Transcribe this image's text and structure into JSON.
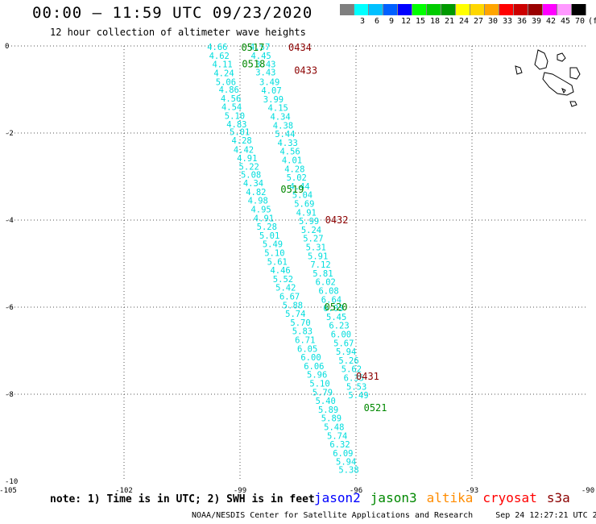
{
  "header": {
    "title": "00:00 – 11:59 UTC 09/23/2020",
    "subtitle": "12 hour collection of altimeter wave heights"
  },
  "legend": {
    "unit": "(ft)",
    "bins": [
      {
        "label": "",
        "color": "#7f7f7f"
      },
      {
        "label": "3",
        "color": "#00ffff"
      },
      {
        "label": "6",
        "color": "#00c0ff"
      },
      {
        "label": "9",
        "color": "#0060ff"
      },
      {
        "label": "12",
        "color": "#0000ff"
      },
      {
        "label": "15",
        "color": "#00ff00"
      },
      {
        "label": "18",
        "color": "#00cc00"
      },
      {
        "label": "21",
        "color": "#009900"
      },
      {
        "label": "24",
        "color": "#ffff00"
      },
      {
        "label": "27",
        "color": "#ffd700"
      },
      {
        "label": "30",
        "color": "#ffa500"
      },
      {
        "label": "33",
        "color": "#ff0000"
      },
      {
        "label": "36",
        "color": "#cc0000"
      },
      {
        "label": "39",
        "color": "#990000"
      },
      {
        "label": "42",
        "color": "#ff00ff"
      },
      {
        "label": "45",
        "color": "#ff99ff"
      },
      {
        "label": "70",
        "color": "#000000"
      }
    ]
  },
  "axes": {
    "lon_ticks": [
      "-105",
      "-102",
      "-99",
      "-96",
      "-93",
      "-90"
    ],
    "lat_ticks": [
      "0",
      "-2",
      "-4",
      "-6",
      "-8",
      "-10"
    ]
  },
  "tracks": {
    "color_cyan": "#00dddd",
    "color_green": "#008800",
    "color_red": "#8b0000",
    "track_a": [
      {
        "lon": -99.85,
        "lat": -0.02,
        "v": "4.66"
      },
      {
        "lon": -99.8,
        "lat": -0.22,
        "v": "4.62"
      },
      {
        "lon": -99.72,
        "lat": -0.42,
        "v": "4.11"
      },
      {
        "lon": -99.68,
        "lat": -0.62,
        "v": "4.24"
      },
      {
        "lon": -99.63,
        "lat": -0.82,
        "v": "5.06"
      },
      {
        "lon": -99.55,
        "lat": -1.0,
        "v": "4.86"
      },
      {
        "lon": -99.5,
        "lat": -1.2,
        "v": "4.56"
      },
      {
        "lon": -99.48,
        "lat": -1.4,
        "v": "4.54"
      },
      {
        "lon": -99.4,
        "lat": -1.6,
        "v": "5.10"
      },
      {
        "lon": -99.35,
        "lat": -1.8,
        "v": "4.83"
      },
      {
        "lon": -99.27,
        "lat": -1.97,
        "v": "5.01"
      },
      {
        "lon": -99.22,
        "lat": -2.17,
        "v": "4.28"
      },
      {
        "lon": -99.17,
        "lat": -2.38,
        "v": "4.42"
      },
      {
        "lon": -99.08,
        "lat": -2.57,
        "v": "4.91"
      },
      {
        "lon": -99.03,
        "lat": -2.77,
        "v": "5.22"
      },
      {
        "lon": -98.98,
        "lat": -2.95,
        "v": "5.08"
      },
      {
        "lon": -98.92,
        "lat": -3.15,
        "v": "4.34"
      },
      {
        "lon": -98.85,
        "lat": -3.35,
        "v": "4.82"
      },
      {
        "lon": -98.8,
        "lat": -3.55,
        "v": "4.98"
      },
      {
        "lon": -98.72,
        "lat": -3.75,
        "v": "4.95"
      },
      {
        "lon": -98.65,
        "lat": -3.95,
        "v": "4.91"
      },
      {
        "lon": -98.57,
        "lat": -4.15,
        "v": "5.28"
      },
      {
        "lon": -98.5,
        "lat": -4.35,
        "v": "5.01"
      },
      {
        "lon": -98.42,
        "lat": -4.55,
        "v": "5.49"
      },
      {
        "lon": -98.37,
        "lat": -4.75,
        "v": "5.10"
      },
      {
        "lon": -98.3,
        "lat": -4.95,
        "v": "5.61"
      },
      {
        "lon": -98.22,
        "lat": -5.15,
        "v": "4.46"
      },
      {
        "lon": -98.15,
        "lat": -5.35,
        "v": "5.52"
      },
      {
        "lon": -98.08,
        "lat": -5.55,
        "v": "5.42"
      },
      {
        "lon": -97.98,
        "lat": -5.75,
        "v": "6.67"
      },
      {
        "lon": -97.9,
        "lat": -5.95,
        "v": "5.88"
      },
      {
        "lon": -97.83,
        "lat": -6.15,
        "v": "5.74"
      },
      {
        "lon": -97.7,
        "lat": -6.35,
        "v": "5.70"
      },
      {
        "lon": -97.65,
        "lat": -6.55,
        "v": "5.83"
      },
      {
        "lon": -97.58,
        "lat": -6.75,
        "v": "6.71"
      },
      {
        "lon": -97.52,
        "lat": -6.95,
        "v": "6.05"
      },
      {
        "lon": -97.43,
        "lat": -7.15,
        "v": "6.00"
      },
      {
        "lon": -97.35,
        "lat": -7.35,
        "v": "6.06"
      },
      {
        "lon": -97.27,
        "lat": -7.55,
        "v": "5.96"
      },
      {
        "lon": -97.2,
        "lat": -7.75,
        "v": "5.10"
      },
      {
        "lon": -97.13,
        "lat": -7.95,
        "v": "5.79"
      },
      {
        "lon": -97.05,
        "lat": -8.15,
        "v": "5.40"
      },
      {
        "lon": -96.98,
        "lat": -8.35,
        "v": "5.89"
      },
      {
        "lon": -96.9,
        "lat": -8.55,
        "v": "5.89"
      },
      {
        "lon": -96.83,
        "lat": -8.75,
        "v": "5.48"
      },
      {
        "lon": -96.75,
        "lat": -8.95,
        "v": "5.74"
      },
      {
        "lon": -96.68,
        "lat": -9.15,
        "v": "6.32"
      },
      {
        "lon": -96.6,
        "lat": -9.35,
        "v": "6.09"
      },
      {
        "lon": -96.52,
        "lat": -9.55,
        "v": "5.94"
      },
      {
        "lon": -96.45,
        "lat": -9.73,
        "v": "5.38"
      }
    ],
    "track_b": [
      {
        "lon": -98.75,
        "lat": -0.02,
        "v": "4.57"
      },
      {
        "lon": -98.72,
        "lat": -0.22,
        "v": "4.45"
      },
      {
        "lon": -98.6,
        "lat": -0.42,
        "v": "3.43"
      },
      {
        "lon": -98.6,
        "lat": -0.6,
        "v": "3.43"
      },
      {
        "lon": -98.5,
        "lat": -0.82,
        "v": "3.49"
      },
      {
        "lon": -98.45,
        "lat": -1.02,
        "v": "4.07"
      },
      {
        "lon": -98.4,
        "lat": -1.22,
        "v": "3.99"
      },
      {
        "lon": -98.28,
        "lat": -1.42,
        "v": "4.15"
      },
      {
        "lon": -98.22,
        "lat": -1.62,
        "v": "4.34"
      },
      {
        "lon": -98.15,
        "lat": -1.82,
        "v": "4.38"
      },
      {
        "lon": -98.1,
        "lat": -2.02,
        "v": "5.44"
      },
      {
        "lon": -98.03,
        "lat": -2.22,
        "v": "4.33"
      },
      {
        "lon": -97.97,
        "lat": -2.42,
        "v": "4.56"
      },
      {
        "lon": -97.92,
        "lat": -2.62,
        "v": "4.01"
      },
      {
        "lon": -97.85,
        "lat": -2.82,
        "v": "4.28"
      },
      {
        "lon": -97.8,
        "lat": -3.02,
        "v": "5.02"
      },
      {
        "lon": -97.72,
        "lat": -3.22,
        "v": "4.44"
      },
      {
        "lon": -97.65,
        "lat": -3.42,
        "v": "5.04"
      },
      {
        "lon": -97.6,
        "lat": -3.62,
        "v": "5.69"
      },
      {
        "lon": -97.55,
        "lat": -3.82,
        "v": "4.91"
      },
      {
        "lon": -97.48,
        "lat": -4.02,
        "v": "5.99"
      },
      {
        "lon": -97.42,
        "lat": -4.22,
        "v": "5.24"
      },
      {
        "lon": -97.37,
        "lat": -4.42,
        "v": "5.27"
      },
      {
        "lon": -97.3,
        "lat": -4.62,
        "v": "5.31"
      },
      {
        "lon": -97.25,
        "lat": -4.82,
        "v": "5.91"
      },
      {
        "lon": -97.18,
        "lat": -5.02,
        "v": "7.12"
      },
      {
        "lon": -97.12,
        "lat": -5.22,
        "v": "5.81"
      },
      {
        "lon": -97.05,
        "lat": -5.42,
        "v": "6.02"
      },
      {
        "lon": -96.97,
        "lat": -5.62,
        "v": "6.08"
      },
      {
        "lon": -96.9,
        "lat": -5.82,
        "v": "6.64"
      },
      {
        "lon": -96.85,
        "lat": -6.02,
        "v": "6.03"
      },
      {
        "lon": -96.77,
        "lat": -6.22,
        "v": "5.45"
      },
      {
        "lon": -96.7,
        "lat": -6.42,
        "v": "6.23"
      },
      {
        "lon": -96.65,
        "lat": -6.62,
        "v": "6.00"
      },
      {
        "lon": -96.58,
        "lat": -6.82,
        "v": "5.67"
      },
      {
        "lon": -96.52,
        "lat": -7.02,
        "v": "5.94"
      },
      {
        "lon": -96.45,
        "lat": -7.22,
        "v": "5.26"
      },
      {
        "lon": -96.38,
        "lat": -7.42,
        "v": "5.62"
      },
      {
        "lon": -96.32,
        "lat": -7.62,
        "v": "6.35"
      },
      {
        "lon": -96.25,
        "lat": -7.82,
        "v": "5.53"
      },
      {
        "lon": -96.2,
        "lat": -8.02,
        "v": "5.49"
      }
    ],
    "time_labels": [
      {
        "text": "0517",
        "kind": "green",
        "lon": -98.97,
        "lat": -0.02
      },
      {
        "text": "0434",
        "kind": "red",
        "lon": -97.75,
        "lat": -0.02
      },
      {
        "text": "0518",
        "kind": "green",
        "lon": -98.95,
        "lat": -0.4
      },
      {
        "text": "0433",
        "kind": "red",
        "lon": -97.6,
        "lat": -0.55
      },
      {
        "text": "0519",
        "kind": "green",
        "lon": -97.95,
        "lat": -3.28
      },
      {
        "text": "0432",
        "kind": "red",
        "lon": -96.8,
        "lat": -3.98
      },
      {
        "text": "0520",
        "kind": "green",
        "lon": -96.82,
        "lat": -5.98
      },
      {
        "text": "0431",
        "kind": "red",
        "lon": -96.0,
        "lat": -7.57
      },
      {
        "text": "0521",
        "kind": "green",
        "lon": -95.8,
        "lat": -8.3
      }
    ]
  },
  "footer": {
    "note": "note: 1) Time is in UTC; 2) SWH is in feet",
    "satellites": [
      {
        "name": "jason2",
        "color": "#0000ff"
      },
      {
        "name": "jason3",
        "color": "#008800"
      },
      {
        "name": "altika",
        "color": "#ff8c00"
      },
      {
        "name": "cryosat",
        "color": "#ff0000"
      },
      {
        "name": "s3a",
        "color": "#8b0000"
      }
    ],
    "credit": "NOAA/NESDIS Center for Satellite Applications and Research",
    "timestamp": "Sep 24 12:27:21 UTC 2020"
  }
}
